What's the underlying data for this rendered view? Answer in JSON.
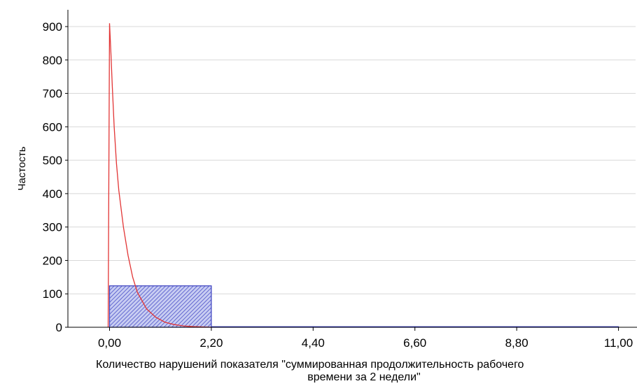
{
  "chart_data": {
    "type": "bar",
    "title": "",
    "xlabel_lines": [
      "Количество нарушений показателя \"суммированная продолжительность рабочего",
      "времени за 2 недели\""
    ],
    "ylabel": "Частость",
    "xlim": [
      -0.9,
      11.4
    ],
    "ylim": [
      0,
      900
    ],
    "x_ticks": [
      0.0,
      2.2,
      4.4,
      6.6,
      8.8,
      11.0
    ],
    "x_tick_labels": [
      "0,00",
      "2,20",
      "4,40",
      "6,60",
      "8,80",
      "11,00"
    ],
    "y_ticks": [
      0,
      100,
      200,
      300,
      400,
      500,
      600,
      700,
      800,
      900
    ],
    "y_tick_labels": [
      "0",
      "100",
      "200",
      "300",
      "400",
      "500",
      "600",
      "700",
      "800",
      "900"
    ],
    "grid": true,
    "bars": [
      {
        "x0": 0.0,
        "x1": 2.2,
        "value": 124
      },
      {
        "x0": 2.2,
        "x1": 4.4,
        "value": 1
      },
      {
        "x0": 4.4,
        "x1": 6.6,
        "value": 1
      },
      {
        "x0": 6.6,
        "x1": 8.8,
        "value": 1
      },
      {
        "x0": 8.8,
        "x1": 11.0,
        "value": 1
      }
    ],
    "fit_curve": {
      "x": [
        -0.03,
        0.0,
        0.03,
        0.06,
        0.1,
        0.15,
        0.2,
        0.3,
        0.4,
        0.5,
        0.6,
        0.8,
        1.0,
        1.2,
        1.4,
        1.6,
        1.8,
        2.0,
        2.2
      ],
      "y": [
        0,
        910,
        820,
        720,
        600,
        490,
        410,
        300,
        215,
        150,
        105,
        55,
        30,
        15,
        8,
        4,
        2,
        1,
        0
      ]
    },
    "colors": {
      "bar_fill": "#c8cdf2",
      "bar_stroke": "#3a3fbf",
      "bar_hatch": "#4b50c8",
      "curve": "#e23535",
      "grid": "#d8d8d8",
      "axis": "#000000",
      "text": "#000000"
    }
  }
}
